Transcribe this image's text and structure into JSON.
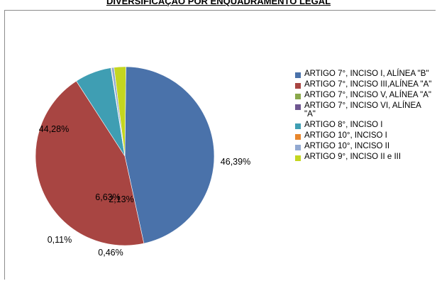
{
  "chart_data": {
    "type": "pie",
    "title": "DIVERSIFICAÇÃO POR ENQUADRAMENTO LEGAL",
    "legend_position": "right",
    "slices": [
      {
        "label": "ARTIGO 7°, INCISO I, ALÍNEA \"B\"",
        "value": 46.39,
        "value_label": "46,39%",
        "color": "#4a72aa"
      },
      {
        "label": "ARTIGO 7°, INCISO III,ALÍNEA \"A\"",
        "value": 44.28,
        "value_label": "44,28%",
        "color": "#a84542"
      },
      {
        "label": "ARTIGO 7°, INCISO V, ALÍNEA \"A\"",
        "value": 0.0,
        "value_label": "",
        "color": "#8aa84b"
      },
      {
        "label": "ARTIGO 7°, INCISO VI, ALÍNEA \"A\"",
        "value": 0.0,
        "value_label": "",
        "color": "#6e5690"
      },
      {
        "label": "ARTIGO 8°, INCISO I",
        "value": 6.63,
        "value_label": "6,63%",
        "color": "#3f9eb3"
      },
      {
        "label": "ARTIGO 10°, INCISO I",
        "value": 0.11,
        "value_label": "0,11%",
        "color": "#e8862c"
      },
      {
        "label": "ARTIGO 10°, INCISO II",
        "value": 0.46,
        "value_label": "0,46%",
        "color": "#92a9d1"
      },
      {
        "label": "ARTIGO 9°, INCISO II e  III",
        "value": 2.13,
        "value_label": "2,13%",
        "color": "#c4d620"
      }
    ]
  }
}
